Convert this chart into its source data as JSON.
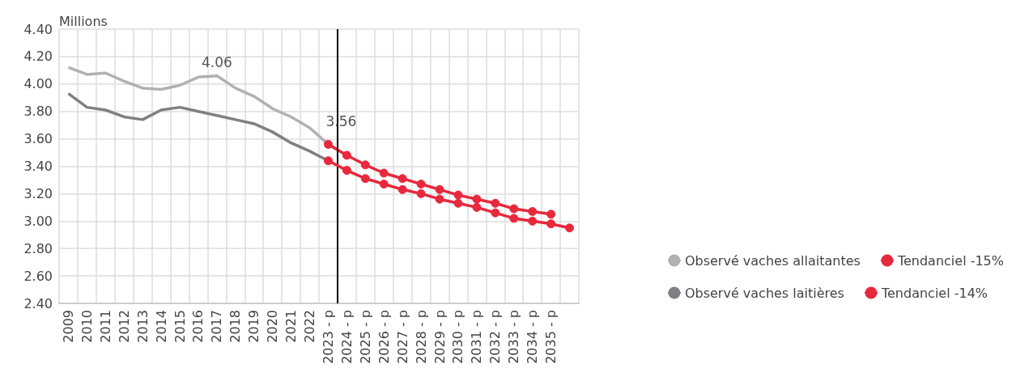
{
  "chart_data": {
    "type": "line",
    "ylabel": "Millions",
    "categories": [
      "2009",
      "2010",
      "2011",
      "2012",
      "2013",
      "2014",
      "2015",
      "2016",
      "2017",
      "2018",
      "2019",
      "2020",
      "2021",
      "2022",
      "2023 - p",
      "2024 - p",
      "2025 - p",
      "2026 - p",
      "2027 - p",
      "2028 - p",
      "2029 - p",
      "2030 - p",
      "2031 - p",
      "2032 - p",
      "2033 - p",
      "2034 - p",
      "2035 - p",
      null
    ],
    "series": [
      {
        "name": "Observé vaches allaitantes",
        "color": "#b1b1b3",
        "marker": "none",
        "values": [
          4.12,
          4.07,
          4.08,
          4.02,
          3.97,
          3.96,
          3.99,
          4.05,
          4.06,
          3.97,
          3.91,
          3.82,
          3.76,
          3.68,
          3.56,
          null,
          null,
          null,
          null,
          null,
          null,
          null,
          null,
          null,
          null,
          null,
          null,
          null
        ],
        "value_labels": [
          null,
          null,
          null,
          null,
          null,
          null,
          null,
          null,
          "4.06",
          null,
          null,
          null,
          null,
          null,
          null,
          null,
          null,
          null,
          null,
          null,
          null,
          null,
          null,
          null,
          null,
          null,
          null,
          null
        ]
      },
      {
        "name": "Tendanciel -15%",
        "color": "#e8283c",
        "marker": "circle",
        "values": [
          null,
          null,
          null,
          null,
          null,
          null,
          null,
          null,
          null,
          null,
          null,
          null,
          null,
          null,
          3.56,
          3.48,
          3.41,
          3.35,
          3.31,
          3.27,
          3.23,
          3.19,
          3.16,
          3.13,
          3.09,
          3.07,
          3.05,
          null
        ],
        "value_labels": [
          null,
          null,
          null,
          null,
          null,
          null,
          null,
          null,
          null,
          null,
          null,
          null,
          null,
          null,
          "3.56",
          null,
          null,
          null,
          null,
          null,
          null,
          null,
          null,
          null,
          null,
          null,
          null,
          null
        ]
      },
      {
        "name": "Observé vaches laitières",
        "color": "#808084",
        "marker": "none",
        "values": [
          3.93,
          3.83,
          3.81,
          3.76,
          3.74,
          3.81,
          3.83,
          3.8,
          3.77,
          3.74,
          3.71,
          3.65,
          3.57,
          3.51,
          3.44,
          null,
          null,
          null,
          null,
          null,
          null,
          null,
          null,
          null,
          null,
          null,
          null,
          null
        ]
      },
      {
        "name": "Tendanciel -14%",
        "color": "#e8283c",
        "marker": "circle",
        "values": [
          null,
          null,
          null,
          null,
          null,
          null,
          null,
          null,
          null,
          null,
          null,
          null,
          null,
          null,
          3.44,
          3.37,
          3.31,
          3.27,
          3.23,
          3.2,
          3.16,
          3.13,
          3.1,
          3.06,
          3.02,
          3.0,
          2.98,
          2.95
        ]
      }
    ],
    "ylim": [
      2.4,
      4.4
    ],
    "yticks": [
      {
        "value": 2.4,
        "label": "2.40"
      },
      {
        "value": 2.6,
        "label": "2.60"
      },
      {
        "value": 2.8,
        "label": "2.80"
      },
      {
        "value": 3.0,
        "label": "3.00"
      },
      {
        "value": 3.2,
        "label": "3.20"
      },
      {
        "value": 3.4,
        "label": "3.40"
      },
      {
        "value": 3.6,
        "label": "3.60"
      },
      {
        "value": 3.8,
        "label": "3.80"
      },
      {
        "value": 4.0,
        "label": "4.00"
      },
      {
        "value": 4.2,
        "label": "4.20"
      },
      {
        "value": 4.4,
        "label": "4.40"
      }
    ],
    "ref_lines": [
      {
        "axis": "x",
        "value": "2023 - p",
        "color": "#000000"
      }
    ],
    "grid": true,
    "legend": "bottom right"
  }
}
